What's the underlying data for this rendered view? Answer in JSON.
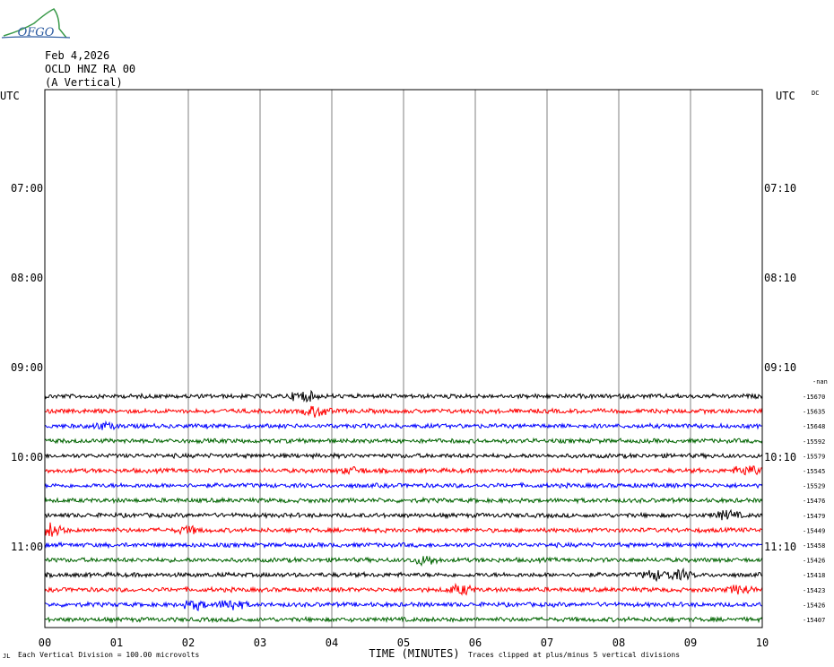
{
  "logo": {
    "text": "OFGO"
  },
  "header": {
    "date": "Feb 4,2026",
    "station": "OCLD HNZ RA 00",
    "component": "(A Vertical)"
  },
  "axis": {
    "left_title": "UTC",
    "right_title": "UTC",
    "dc_label": "DC",
    "xlabel": "TIME (MINUTES)",
    "x_ticks": [
      "00",
      "01",
      "02",
      "03",
      "04",
      "05",
      "06",
      "07",
      "08",
      "09",
      "10"
    ],
    "left_time_labels": [
      "07:00",
      "08:00",
      "09:00",
      "10:00",
      "11:00"
    ],
    "right_time_labels": [
      "07:10",
      "08:10",
      "09:10",
      "10:10",
      "11:10"
    ]
  },
  "footer": {
    "left_mark": "JL",
    "scale_note": "Each Vertical Division =  100.00 microvolts",
    "clip_note": "Traces clipped at plus/minus 5 vertical divisions"
  },
  "chart_data": {
    "type": "line",
    "xlabel": "TIME (MINUTES)",
    "xlim": [
      0,
      10
    ],
    "rows_start": "06:30",
    "row_minutes": 10,
    "trace_colors": [
      "#000000",
      "#ff0000",
      "#0000ff",
      "#006400"
    ],
    "first_trace_row_label": "-nan",
    "traces": [
      {
        "dc": "-15670",
        "color": "#000000",
        "events": [
          [
            3.6,
            2.2
          ]
        ]
      },
      {
        "dc": "-15635",
        "color": "#ff0000",
        "events": [
          [
            3.8,
            2.6
          ]
        ]
      },
      {
        "dc": "-15648",
        "color": "#0000ff",
        "events": [
          [
            0.8,
            1.3
          ]
        ]
      },
      {
        "dc": "-15592",
        "color": "#006400",
        "events": []
      },
      {
        "dc": "-15579",
        "color": "#000000",
        "events": []
      },
      {
        "dc": "-15545",
        "color": "#ff0000",
        "events": [
          [
            4.3,
            1.3
          ],
          [
            9.8,
            2.6
          ]
        ]
      },
      {
        "dc": "-15529",
        "color": "#0000ff",
        "events": []
      },
      {
        "dc": "-15476",
        "color": "#006400",
        "events": []
      },
      {
        "dc": "-15479",
        "color": "#000000",
        "events": [
          [
            9.5,
            2.0
          ]
        ]
      },
      {
        "dc": "-15449",
        "color": "#ff0000",
        "events": [
          [
            0.08,
            3.0
          ],
          [
            2.0,
            1.3
          ]
        ]
      },
      {
        "dc": "-15458",
        "color": "#0000ff",
        "events": []
      },
      {
        "dc": "-15426",
        "color": "#006400",
        "events": [
          [
            5.3,
            2.0
          ]
        ]
      },
      {
        "dc": "-15418",
        "color": "#000000",
        "events": [
          [
            8.5,
            2.0
          ],
          [
            8.85,
            2.0
          ]
        ]
      },
      {
        "dc": "-15423",
        "color": "#ff0000",
        "events": [
          [
            5.8,
            2.2
          ],
          [
            9.7,
            2.0
          ]
        ]
      },
      {
        "dc": "-15426",
        "color": "#0000ff",
        "events": [
          [
            2.1,
            2.0
          ],
          [
            2.6,
            2.6
          ]
        ]
      },
      {
        "dc": "-15407",
        "color": "#006400",
        "events": []
      }
    ]
  }
}
